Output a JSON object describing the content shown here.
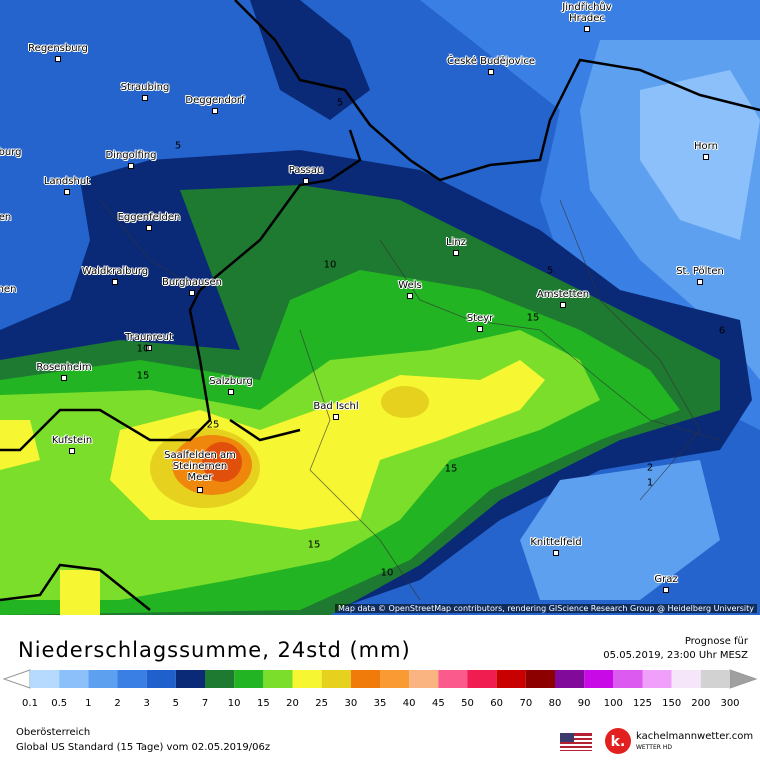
{
  "map": {
    "cities": [
      "Regensburg",
      "Straubing",
      "Deggendorf",
      "České Budějovice",
      "Jindřichův Hradec",
      "burg",
      "Dingolfing",
      "Passau",
      "Horn",
      "Landshut",
      "en",
      "Eggenfelden",
      "Linz",
      "Waldkraiburg",
      "nen",
      "St. Pölten",
      "Burghausen",
      "Wels",
      "Amstetten",
      "Steyr",
      "Traunreut",
      "Rosenheim",
      "Salzburg",
      "Bad Ischl",
      "Kufstein",
      "Saalfelden am Steinernen Meer",
      "Knittelfeld",
      "Graz"
    ],
    "contour_labels": [
      "5",
      "5",
      "10",
      "5",
      "15",
      "10",
      "6",
      "15",
      "25",
      "15",
      "2",
      "1",
      "15",
      "10"
    ],
    "attribution": "Map data © OpenStreetMap contributors, rendering GIScience Research Group @ Heidelberg University"
  },
  "header": {
    "title": "Niederschlagssumme, 24std (mm)",
    "forecast_label": "Prognose für",
    "forecast_time": "05.05.2019, 23:00 Uhr MESZ"
  },
  "legend": {
    "labels": [
      "0.1",
      "0.5",
      "1",
      "2",
      "3",
      "5",
      "7",
      "10",
      "15",
      "20",
      "25",
      "30",
      "35",
      "40",
      "45",
      "50",
      "60",
      "70",
      "80",
      "90",
      "100",
      "125",
      "150",
      "200",
      "300"
    ],
    "colors": [
      "#b6d9fe",
      "#8cc0fa",
      "#5da0f0",
      "#3a80e4",
      "#2060cc",
      "#0a2a78",
      "#1e7a30",
      "#22b422",
      "#7ade2a",
      "#f6f632",
      "#e6d21e",
      "#f07a0a",
      "#fa9a32",
      "#fab482",
      "#fa5a8c",
      "#f01e50",
      "#c80000",
      "#8c0000",
      "#820a9a",
      "#c80ae6",
      "#dc5af0",
      "#f0a0fa",
      "#f5e6fa",
      "#d2d2d2"
    ]
  },
  "footer": {
    "region": "Oberösterreich",
    "model": "Global US Standard (15 Tage) vom 02.05.2019/06z",
    "brand": "kachelmannwetter.com",
    "brand_sub": "WETTER HD"
  }
}
